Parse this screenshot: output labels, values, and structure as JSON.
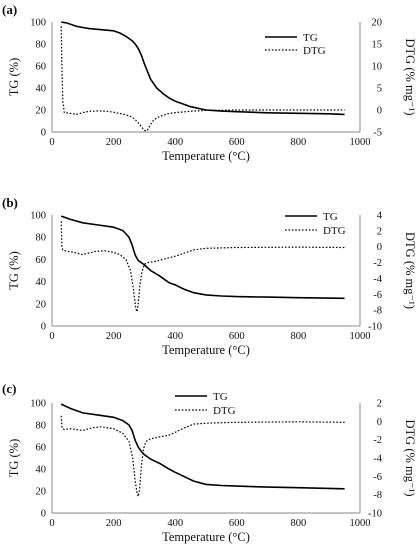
{
  "chart_data": [
    {
      "type": "line",
      "panel_label": "(a)",
      "xlabel": "Temperature (°C)",
      "ylabel": "TG (%)",
      "y2label": "DTG (% mg⁻¹)",
      "xlim": [
        0,
        1000
      ],
      "ylim": [
        0,
        100
      ],
      "y2lim": [
        -5,
        20
      ],
      "xticks": [
        0,
        200,
        400,
        600,
        800,
        1000
      ],
      "yticks": [
        0,
        20,
        40,
        60,
        80,
        100
      ],
      "y2ticks": [
        -5,
        0,
        5,
        10,
        15,
        20
      ],
      "legend_position": "top-right",
      "series": [
        {
          "name": "TG",
          "axis": "left",
          "style": "solid",
          "x": [
            30,
            50,
            80,
            120,
            160,
            200,
            220,
            240,
            260,
            270,
            280,
            290,
            300,
            310,
            320,
            340,
            360,
            380,
            400,
            420,
            450,
            500,
            550,
            600,
            700,
            800,
            900,
            950
          ],
          "y": [
            100,
            99,
            96,
            94,
            93,
            92,
            90,
            87,
            83,
            80,
            76,
            70,
            62,
            55,
            48,
            40,
            35,
            31,
            28,
            26,
            23,
            20,
            19,
            18.5,
            17.5,
            17,
            16.5,
            16
          ]
        },
        {
          "name": "DTG",
          "axis": "right",
          "style": "dotted",
          "x": [
            30,
            32,
            35,
            40,
            60,
            80,
            100,
            120,
            150,
            180,
            200,
            220,
            240,
            260,
            275,
            290,
            300,
            305,
            310,
            320,
            330,
            345,
            360,
            380,
            400,
            450,
            500,
            600,
            800,
            950
          ],
          "y": [
            19,
            10,
            2,
            -0.6,
            -0.8,
            -1.0,
            -0.6,
            -0.3,
            -0.2,
            -0.3,
            -0.5,
            -0.8,
            -1.1,
            -1.6,
            -2.5,
            -3.8,
            -4.6,
            -4.8,
            -4.5,
            -3.3,
            -2.3,
            -1.6,
            -1.2,
            -0.8,
            -0.6,
            -0.3,
            -0.1,
            0,
            0,
            0
          ]
        }
      ]
    },
    {
      "type": "line",
      "panel_label": "(b)",
      "xlabel": "Temperature (°C)",
      "ylabel": "TG (%)",
      "y2label": "DTG (% mg⁻¹)",
      "xlim": [
        0,
        1000
      ],
      "ylim": [
        0,
        100
      ],
      "y2lim": [
        -10,
        4
      ],
      "xticks": [
        0,
        200,
        400,
        600,
        800,
        1000
      ],
      "yticks": [
        0,
        20,
        40,
        60,
        80,
        100
      ],
      "y2ticks": [
        -10,
        -8,
        -6,
        -4,
        -2,
        0,
        2,
        4
      ],
      "legend_position": "top-right",
      "series": [
        {
          "name": "TG",
          "axis": "left",
          "style": "solid",
          "x": [
            30,
            60,
            100,
            150,
            200,
            230,
            250,
            260,
            270,
            280,
            290,
            300,
            320,
            350,
            380,
            400,
            430,
            460,
            500,
            550,
            600,
            700,
            800,
            950
          ],
          "y": [
            99,
            96,
            93,
            91,
            89,
            86,
            80,
            73,
            64,
            59,
            57,
            55,
            50,
            45,
            39,
            37,
            33,
            30,
            28,
            27,
            26.5,
            26,
            25.5,
            25
          ]
        },
        {
          "name": "DTG",
          "axis": "right",
          "style": "dotted",
          "x": [
            30,
            32,
            35,
            40,
            70,
            100,
            140,
            170,
            200,
            220,
            240,
            255,
            265,
            272,
            276,
            280,
            285,
            292,
            300,
            310,
            330,
            360,
            400,
            430,
            460,
            500,
            600,
            800,
            950
          ],
          "y": [
            3.2,
            0,
            -0.4,
            -0.5,
            -0.7,
            -1.0,
            -0.6,
            -0.5,
            -0.7,
            -1.0,
            -1.6,
            -3.0,
            -5.5,
            -7.8,
            -8.2,
            -7.2,
            -5.0,
            -3.2,
            -2.2,
            -2.0,
            -1.9,
            -1.6,
            -1.2,
            -0.8,
            -0.4,
            -0.2,
            -0.1,
            -0.05,
            -0.1
          ]
        }
      ]
    },
    {
      "type": "line",
      "panel_label": "(c)",
      "xlabel": "Temperature (°C)",
      "ylabel": "TG (%)",
      "y2label": "DTG (% mg⁻¹)",
      "xlim": [
        0,
        1000
      ],
      "ylim": [
        0,
        100
      ],
      "y2lim": [
        -10,
        2
      ],
      "xticks": [
        0,
        200,
        400,
        600,
        800,
        1000
      ],
      "yticks": [
        0,
        20,
        40,
        60,
        80,
        100
      ],
      "y2ticks": [
        -10,
        -8,
        -6,
        -4,
        -2,
        0,
        2
      ],
      "legend_position": "top-center",
      "series": [
        {
          "name": "TG",
          "axis": "left",
          "style": "solid",
          "x": [
            30,
            60,
            100,
            150,
            200,
            230,
            250,
            260,
            270,
            280,
            290,
            300,
            320,
            350,
            380,
            400,
            430,
            460,
            500,
            550,
            600,
            700,
            800,
            950
          ],
          "y": [
            99,
            95,
            91,
            89,
            87,
            84,
            80,
            75,
            66,
            60,
            56,
            53,
            49,
            45,
            40,
            37,
            33,
            29,
            26,
            25,
            24.5,
            23.5,
            23,
            22
          ]
        },
        {
          "name": "DTG",
          "axis": "right",
          "style": "dotted",
          "x": [
            30,
            32,
            35,
            40,
            60,
            80,
            100,
            130,
            160,
            200,
            230,
            250,
            262,
            270,
            276,
            280,
            284,
            290,
            297,
            305,
            320,
            350,
            380,
            400,
            430,
            460,
            500,
            600,
            800,
            950
          ],
          "y": [
            0.6,
            -0.6,
            -0.8,
            -0.9,
            -0.8,
            -0.9,
            -1.0,
            -0.7,
            -0.6,
            -0.8,
            -1.3,
            -2.2,
            -4.0,
            -6.5,
            -7.8,
            -8.2,
            -7.5,
            -5.0,
            -3.0,
            -2.2,
            -1.9,
            -1.7,
            -1.5,
            -1.2,
            -0.7,
            -0.3,
            -0.2,
            -0.1,
            -0.05,
            -0.1
          ]
        }
      ]
    }
  ]
}
